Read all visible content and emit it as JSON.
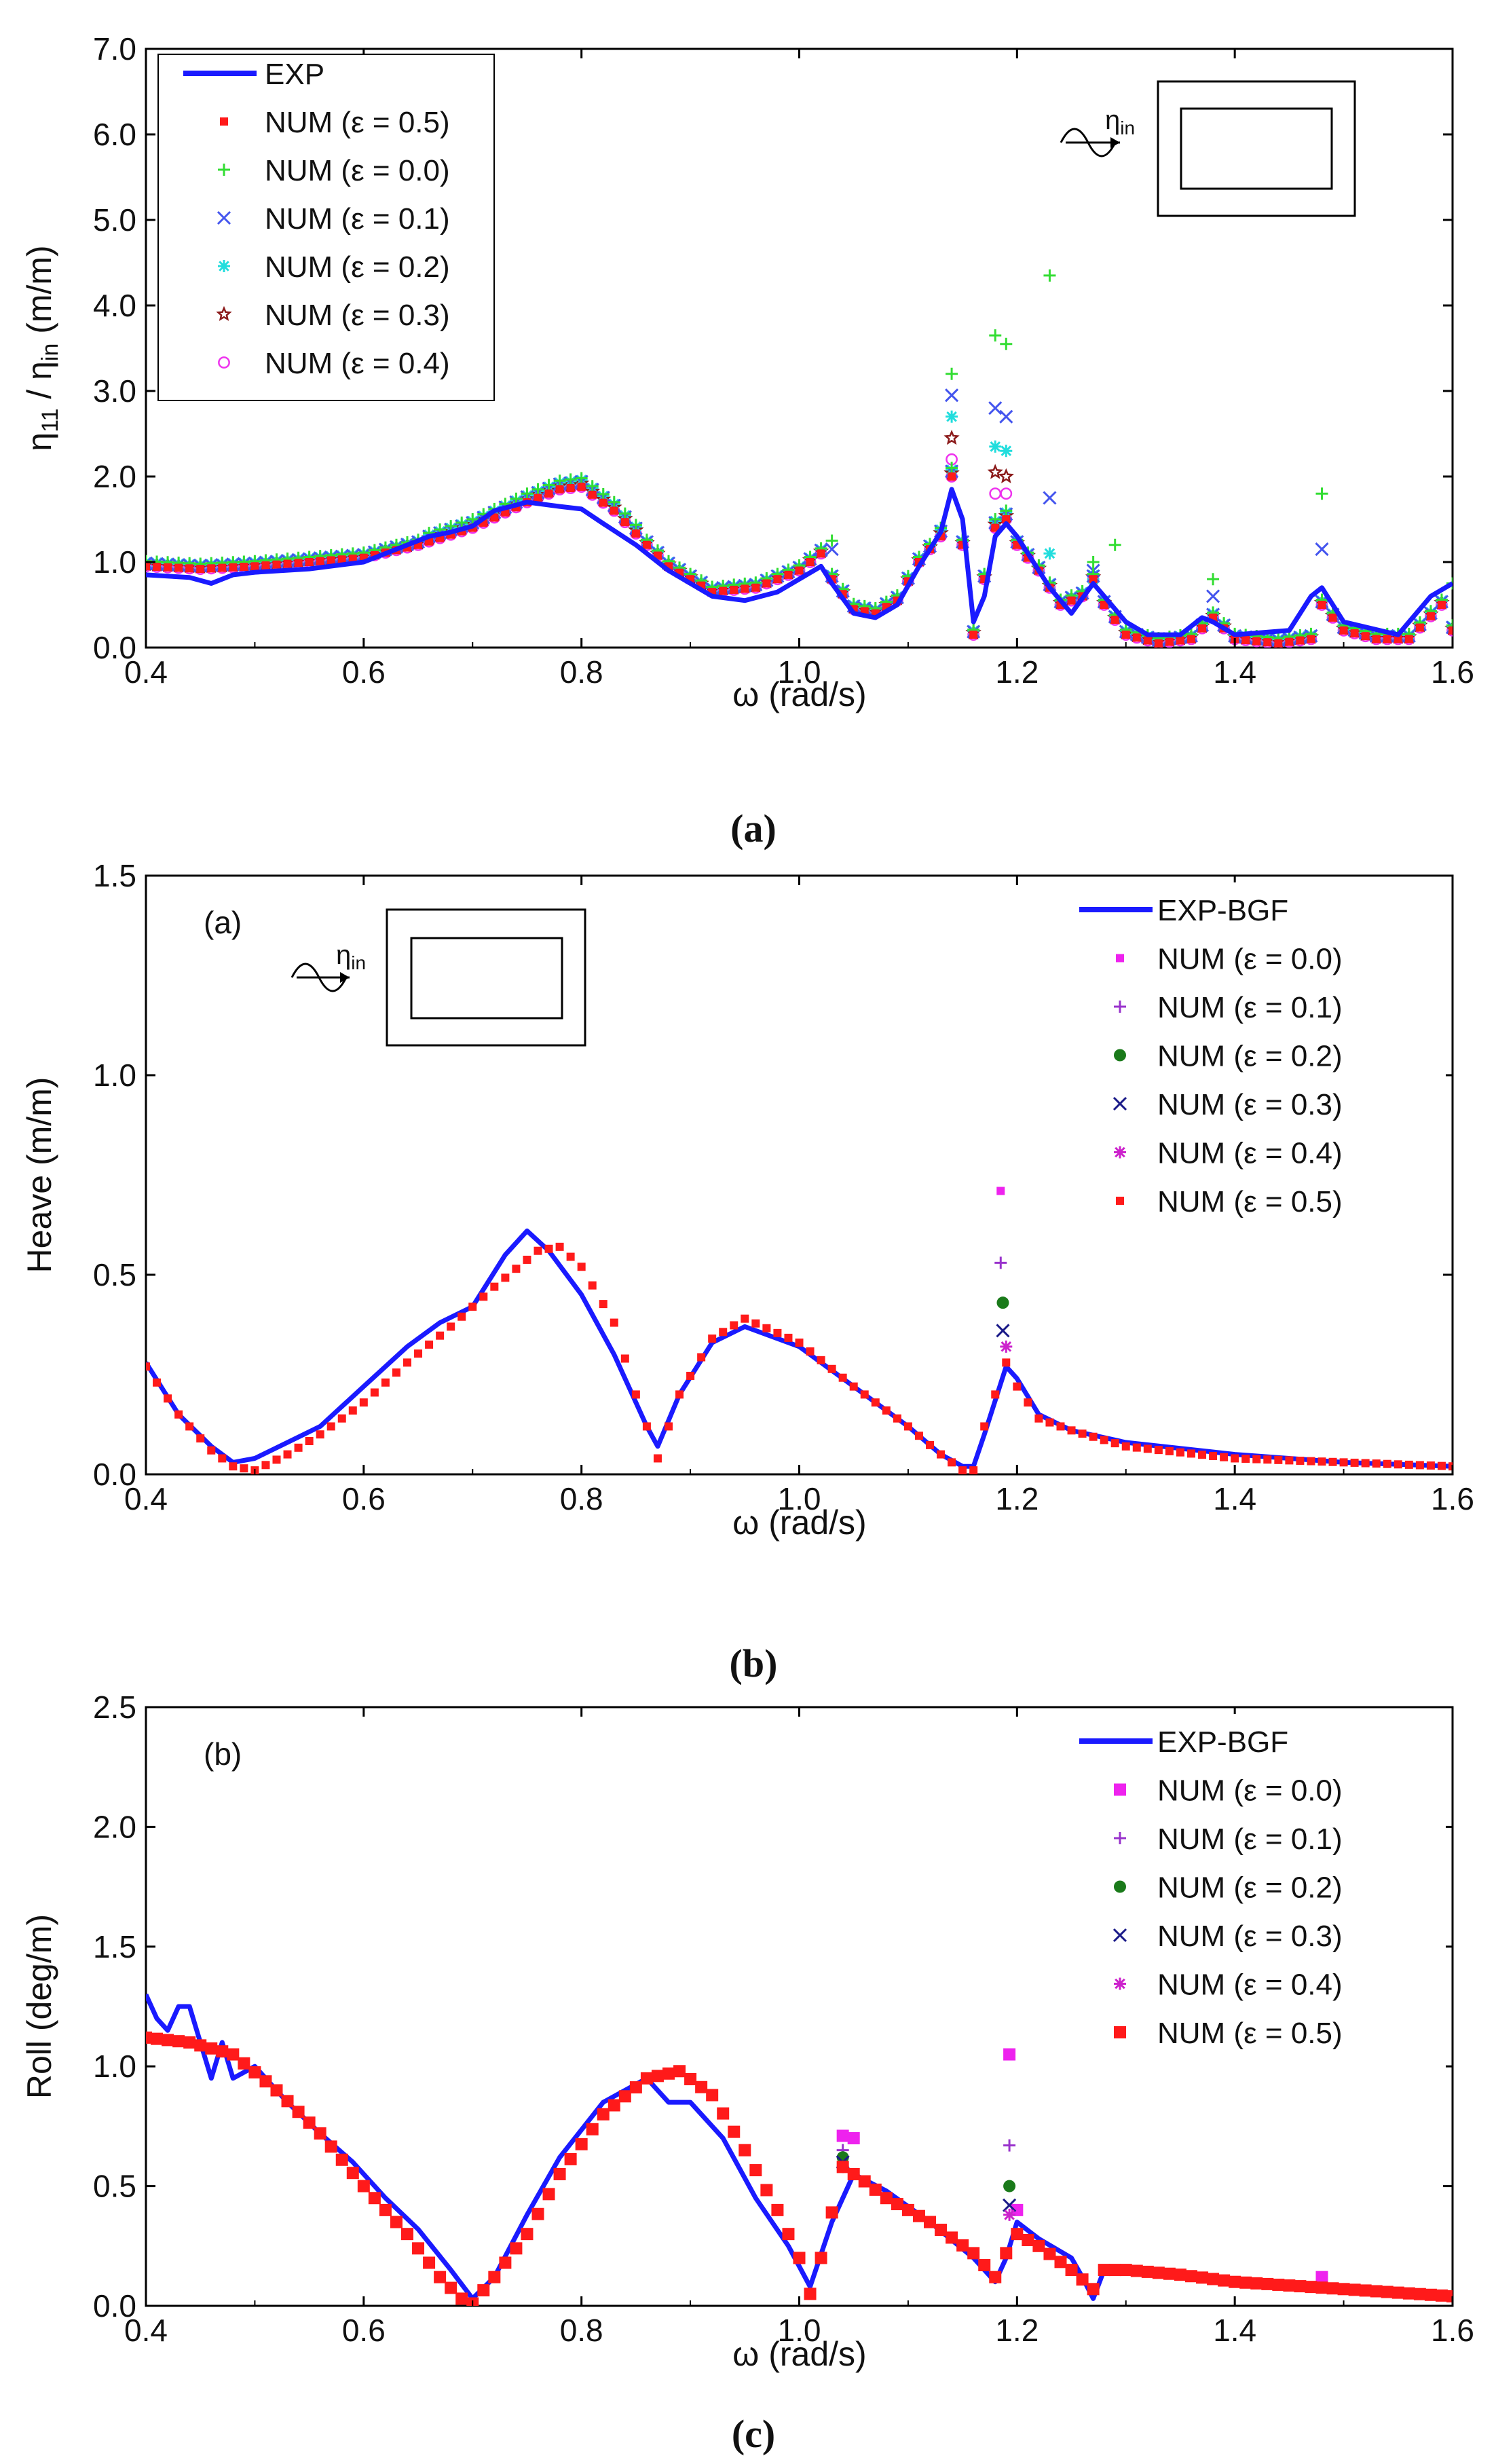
{
  "colors": {
    "exp": "#1a1aff",
    "num05": "#ff1a1a",
    "num00_a": "#33dd33",
    "num01_a": "#4455ee",
    "num02_a": "#22dddd",
    "num03_a": "#8b1a1a",
    "num04_a": "#ee33ee",
    "num00_b": "#ee22ee",
    "num01_b": "#9933cc",
    "num02_b": "#1a7a1a",
    "num03_b": "#1a1a88",
    "num04_b": "#cc22cc"
  },
  "chart_data": [
    {
      "type": "line",
      "panel_label": "(a)",
      "xlabel": "ω (rad/s)",
      "ylabel_main": "η",
      "ylabel_sub1": "11",
      "ylabel_mid": " / η",
      "ylabel_sub2": "in",
      "ylabel_tail": " (m/m)",
      "xlim": [
        0.4,
        1.6
      ],
      "ylim": [
        0.0,
        7.0
      ],
      "xticks": [
        "0.4",
        "0.6",
        "0.8",
        "1.0",
        "1.2",
        "1.4",
        "1.6"
      ],
      "yticks": [
        "0.0",
        "1.0",
        "2.0",
        "3.0",
        "4.0",
        "5.0",
        "6.0",
        "7.0"
      ],
      "legend": [
        "EXP",
        "NUM (ε = 0.5)",
        "NUM (ε = 0.0)",
        "NUM (ε = 0.1)",
        "NUM (ε = 0.2)",
        "NUM (ε = 0.3)",
        "NUM (ε = 0.4)"
      ],
      "inset_label_main": "η",
      "inset_label_sub": "in",
      "exp": {
        "x": [
          0.4,
          0.44,
          0.46,
          0.48,
          0.5,
          0.55,
          0.6,
          0.63,
          0.66,
          0.68,
          0.7,
          0.72,
          0.75,
          0.78,
          0.8,
          0.82,
          0.85,
          0.88,
          0.92,
          0.95,
          0.98,
          1.0,
          1.02,
          1.03,
          1.05,
          1.07,
          1.09,
          1.11,
          1.13,
          1.14,
          1.15,
          1.16,
          1.17,
          1.18,
          1.19,
          1.2,
          1.21,
          1.23,
          1.25,
          1.27,
          1.28,
          1.3,
          1.32,
          1.35,
          1.37,
          1.38,
          1.4,
          1.45,
          1.47,
          1.48,
          1.5,
          1.55,
          1.58,
          1.6
        ],
        "y": [
          0.85,
          0.82,
          0.75,
          0.85,
          0.88,
          0.92,
          1.0,
          1.15,
          1.3,
          1.35,
          1.42,
          1.6,
          1.7,
          1.65,
          1.62,
          1.45,
          1.2,
          0.9,
          0.6,
          0.55,
          0.65,
          0.8,
          0.95,
          0.75,
          0.4,
          0.35,
          0.5,
          0.95,
          1.35,
          1.85,
          1.5,
          0.3,
          0.6,
          1.3,
          1.45,
          1.3,
          1.1,
          0.7,
          0.4,
          0.75,
          0.6,
          0.3,
          0.15,
          0.15,
          0.35,
          0.3,
          0.15,
          0.2,
          0.6,
          0.7,
          0.3,
          0.15,
          0.6,
          0.75
        ]
      },
      "num_base": {
        "x": [
          0.4,
          0.45,
          0.5,
          0.55,
          0.6,
          0.65,
          0.7,
          0.75,
          0.78,
          0.8,
          0.83,
          0.86,
          0.88,
          0.92,
          0.96,
          1.0,
          1.02,
          1.03,
          1.05,
          1.07,
          1.09,
          1.11,
          1.13,
          1.14,
          1.15,
          1.16,
          1.17,
          1.18,
          1.19,
          1.2,
          1.22,
          1.24,
          1.26,
          1.27,
          1.28,
          1.3,
          1.33,
          1.36,
          1.38,
          1.4,
          1.44,
          1.47,
          1.48,
          1.5,
          1.53,
          1.56,
          1.59,
          1.6
        ],
        "y": [
          0.95,
          0.92,
          0.95,
          1.0,
          1.05,
          1.2,
          1.4,
          1.7,
          1.85,
          1.88,
          1.6,
          1.2,
          0.95,
          0.65,
          0.7,
          0.9,
          1.1,
          0.8,
          0.45,
          0.4,
          0.55,
          1.0,
          1.3,
          2.0,
          1.2,
          0.15,
          0.8,
          1.4,
          1.5,
          1.2,
          0.9,
          0.5,
          0.6,
          0.8,
          0.5,
          0.15,
          0.05,
          0.1,
          0.35,
          0.1,
          0.05,
          0.1,
          0.5,
          0.2,
          0.1,
          0.1,
          0.5,
          0.2
        ]
      },
      "peaks": {
        "eps00": {
          "x": [
            1.03,
            1.14,
            1.18,
            1.19,
            1.23,
            1.27,
            1.29,
            1.38,
            1.48,
            1.6
          ],
          "y": [
            1.25,
            3.2,
            3.65,
            3.55,
            4.35,
            1.0,
            1.2,
            0.8,
            1.8,
            0.75
          ]
        },
        "eps01": {
          "x": [
            1.03,
            1.14,
            1.18,
            1.19,
            1.23,
            1.27,
            1.38,
            1.48
          ],
          "y": [
            1.15,
            2.95,
            2.8,
            2.7,
            1.75,
            0.9,
            0.6,
            1.15
          ]
        },
        "eps02": {
          "x": [
            1.14,
            1.18,
            1.19,
            1.23,
            1.27
          ],
          "y": [
            2.7,
            2.35,
            2.3,
            1.1,
            0.8
          ]
        },
        "eps03": {
          "x": [
            1.14,
            1.18,
            1.19
          ],
          "y": [
            2.45,
            2.05,
            2.0
          ]
        },
        "eps04": {
          "x": [
            1.14,
            1.18,
            1.19
          ],
          "y": [
            2.2,
            1.8,
            1.8
          ]
        }
      }
    },
    {
      "type": "line",
      "panel_label": "(b)",
      "inner_label": "(a)",
      "xlabel": "ω (rad/s)",
      "ylabel": "Heave (m/m)",
      "xlim": [
        0.4,
        1.6
      ],
      "ylim": [
        0.0,
        1.5
      ],
      "xticks": [
        "0.4",
        "0.6",
        "0.8",
        "1.0",
        "1.2",
        "1.4",
        "1.6"
      ],
      "yticks": [
        "0.0",
        "0.5",
        "1.0",
        "1.5"
      ],
      "legend": [
        "EXP-BGF",
        "NUM (ε = 0.0)",
        "NUM (ε = 0.1)",
        "NUM (ε = 0.2)",
        "NUM (ε = 0.3)",
        "NUM (ε = 0.4)",
        "NUM (ε = 0.5)"
      ],
      "inset_label_main": "η",
      "inset_label_sub": "in",
      "exp": {
        "x": [
          0.4,
          0.43,
          0.46,
          0.48,
          0.5,
          0.53,
          0.56,
          0.6,
          0.64,
          0.67,
          0.7,
          0.73,
          0.75,
          0.77,
          0.8,
          0.83,
          0.86,
          0.87,
          0.89,
          0.92,
          0.95,
          1.0,
          1.05,
          1.1,
          1.13,
          1.15,
          1.16,
          1.17,
          1.19,
          1.2,
          1.22,
          1.25,
          1.3,
          1.4,
          1.5,
          1.6
        ],
        "y": [
          0.28,
          0.15,
          0.07,
          0.03,
          0.04,
          0.08,
          0.12,
          0.22,
          0.32,
          0.38,
          0.42,
          0.55,
          0.61,
          0.56,
          0.45,
          0.3,
          0.12,
          0.07,
          0.2,
          0.33,
          0.37,
          0.32,
          0.22,
          0.12,
          0.05,
          0.02,
          0.02,
          0.1,
          0.27,
          0.24,
          0.15,
          0.11,
          0.08,
          0.05,
          0.03,
          0.02
        ]
      },
      "num05": {
        "x": [
          0.4,
          0.43,
          0.46,
          0.48,
          0.5,
          0.53,
          0.56,
          0.6,
          0.64,
          0.68,
          0.72,
          0.76,
          0.78,
          0.8,
          0.83,
          0.85,
          0.87,
          0.89,
          0.92,
          0.95,
          1.0,
          1.05,
          1.1,
          1.13,
          1.15,
          1.16,
          1.17,
          1.19,
          1.2,
          1.22,
          1.25,
          1.3,
          1.4,
          1.5,
          1.6
        ],
        "y": [
          0.27,
          0.15,
          0.06,
          0.02,
          0.01,
          0.05,
          0.1,
          0.18,
          0.28,
          0.37,
          0.47,
          0.56,
          0.57,
          0.52,
          0.38,
          0.2,
          0.04,
          0.2,
          0.34,
          0.39,
          0.33,
          0.22,
          0.12,
          0.05,
          0.01,
          0.01,
          0.12,
          0.28,
          0.22,
          0.14,
          0.11,
          0.07,
          0.04,
          0.03,
          0.02
        ]
      },
      "peaks": {
        "eps00": {
          "x": [
            1.185
          ],
          "y": [
            0.71
          ]
        },
        "eps01": {
          "x": [
            1.185
          ],
          "y": [
            0.53
          ]
        },
        "eps02": {
          "x": [
            1.187
          ],
          "y": [
            0.43
          ]
        },
        "eps03": {
          "x": [
            1.187
          ],
          "y": [
            0.36
          ]
        },
        "eps04": {
          "x": [
            1.19
          ],
          "y": [
            0.32
          ]
        }
      }
    },
    {
      "type": "line",
      "panel_label": "(c)",
      "inner_label": "(b)",
      "xlabel": "ω (rad/s)",
      "ylabel": "Roll (deg/m)",
      "xlim": [
        0.4,
        1.6
      ],
      "ylim": [
        0.0,
        2.5
      ],
      "xticks": [
        "0.4",
        "0.6",
        "0.8",
        "1.0",
        "1.2",
        "1.4",
        "1.6"
      ],
      "yticks": [
        "0.0",
        "0.5",
        "1.0",
        "1.5",
        "2.0",
        "2.5"
      ],
      "legend": [
        "EXP-BGF",
        "NUM (ε = 0.0)",
        "NUM (ε = 0.1)",
        "NUM (ε = 0.2)",
        "NUM (ε = 0.3)",
        "NUM (ε = 0.4)",
        "NUM (ε = 0.5)"
      ],
      "exp": {
        "x": [
          0.4,
          0.41,
          0.42,
          0.43,
          0.44,
          0.45,
          0.46,
          0.47,
          0.48,
          0.5,
          0.53,
          0.56,
          0.59,
          0.62,
          0.65,
          0.68,
          0.7,
          0.72,
          0.75,
          0.78,
          0.82,
          0.86,
          0.88,
          0.9,
          0.93,
          0.96,
          0.99,
          1.01,
          1.03,
          1.05,
          1.08,
          1.12,
          1.16,
          1.18,
          1.19,
          1.2,
          1.22,
          1.25,
          1.26,
          1.27,
          1.28,
          1.3,
          1.35,
          1.4,
          1.5,
          1.6
        ],
        "y": [
          1.3,
          1.2,
          1.15,
          1.25,
          1.25,
          1.1,
          0.95,
          1.1,
          0.95,
          1.0,
          0.85,
          0.72,
          0.6,
          0.45,
          0.32,
          0.15,
          0.03,
          0.12,
          0.38,
          0.62,
          0.85,
          0.95,
          0.85,
          0.85,
          0.7,
          0.45,
          0.25,
          0.08,
          0.35,
          0.55,
          0.48,
          0.35,
          0.2,
          0.1,
          0.2,
          0.35,
          0.28,
          0.2,
          0.12,
          0.03,
          0.15,
          0.14,
          0.12,
          0.09,
          0.06,
          0.03
        ]
      },
      "num05": {
        "x": [
          0.4,
          0.44,
          0.48,
          0.52,
          0.56,
          0.6,
          0.64,
          0.67,
          0.69,
          0.7,
          0.72,
          0.75,
          0.78,
          0.82,
          0.86,
          0.89,
          0.92,
          0.95,
          0.98,
          1.0,
          1.01,
          1.02,
          1.04,
          1.06,
          1.08,
          1.12,
          1.16,
          1.18,
          1.19,
          1.2,
          1.22,
          1.25,
          1.27,
          1.28,
          1.3,
          1.35,
          1.4,
          1.5,
          1.6
        ],
        "y": [
          1.12,
          1.1,
          1.05,
          0.9,
          0.72,
          0.5,
          0.3,
          0.12,
          0.03,
          0.01,
          0.12,
          0.3,
          0.55,
          0.8,
          0.95,
          0.98,
          0.88,
          0.65,
          0.4,
          0.2,
          0.05,
          0.2,
          0.58,
          0.52,
          0.45,
          0.35,
          0.22,
          0.12,
          0.22,
          0.3,
          0.25,
          0.15,
          0.07,
          0.15,
          0.15,
          0.13,
          0.1,
          0.07,
          0.04
        ]
      },
      "peaks": {
        "eps00": {
          "x": [
            1.04,
            1.05,
            1.193,
            1.2,
            1.48
          ],
          "y": [
            0.71,
            0.7,
            1.05,
            0.4,
            0.12
          ]
        },
        "eps01": {
          "x": [
            1.04,
            1.193
          ],
          "y": [
            0.65,
            0.67
          ]
        },
        "eps02": {
          "x": [
            1.04,
            1.193
          ],
          "y": [
            0.62,
            0.5
          ]
        },
        "eps03": {
          "x": [
            1.04,
            1.193
          ],
          "y": [
            0.6,
            0.42
          ]
        },
        "eps04": {
          "x": [
            1.04,
            1.193
          ],
          "y": [
            0.58,
            0.38
          ]
        }
      }
    }
  ]
}
